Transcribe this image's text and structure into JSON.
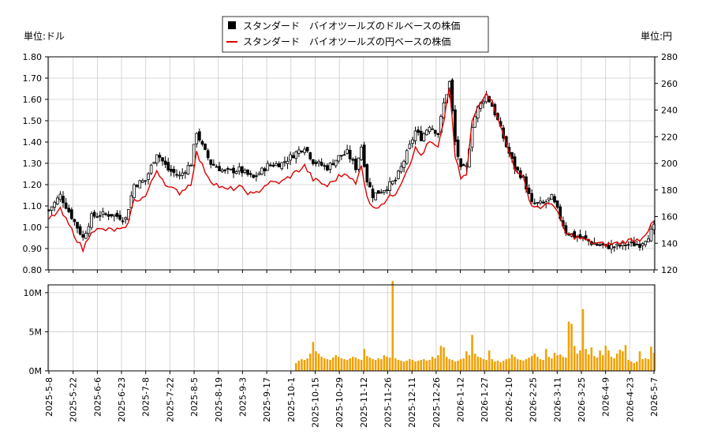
{
  "chart_data": [
    {
      "type": "candlestick+line",
      "legend": {
        "placement": "top-center",
        "entries": [
          {
            "label": "スタンダード　バイオツールズのドルベースの株価",
            "color": "#000000",
            "marker": "square"
          },
          {
            "label": "スタンダード　バイオツールズの円ベースの株価",
            "color": "#dd0000",
            "marker": "line"
          }
        ]
      },
      "ylabel_left": "単位:ドル",
      "ylabel_right": "単位:円",
      "ylim_left": [
        0.8,
        1.8
      ],
      "ylim_right": [
        120,
        280
      ],
      "yticks_left": [
        "1.80",
        "1.70",
        "1.60",
        "1.50",
        "1.40",
        "1.30",
        "1.20",
        "1.10",
        "1.00",
        "0.90",
        "0.80"
      ],
      "yticks_right": [
        "280",
        "260",
        "240",
        "220",
        "200",
        "180",
        "160",
        "140",
        "120"
      ],
      "xticks": [
        "2025-5-8",
        "2025-5-22",
        "2025-6-6",
        "2025-6-23",
        "2025-7-8",
        "2025-7-22",
        "2025-8-5",
        "2025-8-19",
        "2025-9-3",
        "2025-9-17",
        "2025-10-1",
        "2025-10-15",
        "2025-10-29",
        "2025-11-12",
        "2025-11-26",
        "2025-12-11",
        "2025-12-26",
        "2026-1-12",
        "2026-1-27",
        "2026-2-10",
        "2026-2-25",
        "2026-3-11",
        "2026-3-25",
        "2026-4-9",
        "2026-4-23",
        "2026-5-7"
      ],
      "grid": true,
      "usd_close_keypoints": [
        [
          0,
          1.08
        ],
        [
          4,
          1.15
        ],
        [
          8,
          1.05
        ],
        [
          12,
          0.95
        ],
        [
          15,
          1.05
        ],
        [
          18,
          1.06
        ],
        [
          22,
          1.06
        ],
        [
          27,
          1.04
        ],
        [
          30,
          1.2
        ],
        [
          34,
          1.22
        ],
        [
          38,
          1.35
        ],
        [
          42,
          1.27
        ],
        [
          46,
          1.24
        ],
        [
          50,
          1.3
        ],
        [
          52,
          1.45
        ],
        [
          54,
          1.38
        ],
        [
          57,
          1.3
        ],
        [
          62,
          1.26
        ],
        [
          67,
          1.27
        ],
        [
          72,
          1.23
        ],
        [
          77,
          1.29
        ],
        [
          82,
          1.3
        ],
        [
          86,
          1.34
        ],
        [
          90,
          1.38
        ],
        [
          93,
          1.31
        ],
        [
          98,
          1.28
        ],
        [
          102,
          1.33
        ],
        [
          105,
          1.35
        ],
        [
          108,
          1.28
        ],
        [
          110,
          1.38
        ],
        [
          112,
          1.22
        ],
        [
          114,
          1.15
        ],
        [
          118,
          1.18
        ],
        [
          122,
          1.22
        ],
        [
          124,
          1.28
        ],
        [
          127,
          1.38
        ],
        [
          129,
          1.45
        ],
        [
          131,
          1.42
        ],
        [
          134,
          1.48
        ],
        [
          137,
          1.44
        ],
        [
          139,
          1.58
        ],
        [
          141,
          1.68
        ],
        [
          143,
          1.4
        ],
        [
          145,
          1.27
        ],
        [
          147,
          1.28
        ],
        [
          149,
          1.48
        ],
        [
          151,
          1.56
        ],
        [
          154,
          1.62
        ],
        [
          156,
          1.57
        ],
        [
          158,
          1.5
        ],
        [
          161,
          1.38
        ],
        [
          164,
          1.28
        ],
        [
          167,
          1.23
        ],
        [
          170,
          1.11
        ],
        [
          174,
          1.11
        ],
        [
          177,
          1.14
        ],
        [
          179,
          1.08
        ],
        [
          182,
          0.98
        ],
        [
          185,
          0.96
        ],
        [
          188,
          0.95
        ],
        [
          192,
          0.92
        ],
        [
          196,
          0.91
        ],
        [
          200,
          0.91
        ],
        [
          204,
          0.92
        ],
        [
          208,
          0.92
        ],
        [
          211,
          0.96
        ],
        [
          213,
          1.0
        ]
      ],
      "jpy_close_keypoints": [
        [
          0,
          158
        ],
        [
          4,
          165
        ],
        [
          8,
          150
        ],
        [
          12,
          135
        ],
        [
          15,
          150
        ],
        [
          18,
          150
        ],
        [
          22,
          150
        ],
        [
          27,
          150
        ],
        [
          30,
          172
        ],
        [
          34,
          175
        ],
        [
          38,
          195
        ],
        [
          42,
          182
        ],
        [
          46,
          178
        ],
        [
          50,
          185
        ],
        [
          52,
          208
        ],
        [
          54,
          198
        ],
        [
          57,
          187
        ],
        [
          62,
          180
        ],
        [
          67,
          182
        ],
        [
          72,
          176
        ],
        [
          77,
          185
        ],
        [
          82,
          186
        ],
        [
          86,
          192
        ],
        [
          90,
          198
        ],
        [
          93,
          188
        ],
        [
          98,
          183
        ],
        [
          102,
          190
        ],
        [
          105,
          193
        ],
        [
          108,
          184
        ],
        [
          110,
          198
        ],
        [
          112,
          176
        ],
        [
          114,
          166
        ],
        [
          118,
          171
        ],
        [
          122,
          178
        ],
        [
          124,
          186
        ],
        [
          127,
          200
        ],
        [
          129,
          211
        ],
        [
          131,
          206
        ],
        [
          134,
          216
        ],
        [
          137,
          211
        ],
        [
          139,
          232
        ],
        [
          141,
          258
        ],
        [
          143,
          205
        ],
        [
          145,
          189
        ],
        [
          147,
          191
        ],
        [
          149,
          231
        ],
        [
          151,
          243
        ],
        [
          154,
          254
        ],
        [
          156,
          246
        ],
        [
          158,
          236
        ],
        [
          161,
          214
        ],
        [
          164,
          197
        ],
        [
          167,
          188
        ],
        [
          170,
          168
        ],
        [
          174,
          167
        ],
        [
          177,
          171
        ],
        [
          179,
          163
        ],
        [
          182,
          147
        ],
        [
          185,
          145
        ],
        [
          188,
          143
        ],
        [
          192,
          140
        ],
        [
          196,
          139
        ],
        [
          200,
          140
        ],
        [
          204,
          142
        ],
        [
          208,
          143
        ],
        [
          211,
          150
        ],
        [
          213,
          156
        ]
      ],
      "volume_yticks": [
        "10M",
        "5M",
        "0M"
      ],
      "volume_ylim": [
        0,
        11000000
      ],
      "volume_color": "#f0a000",
      "volume_start_index": 87,
      "volume_values": [
        1000000,
        1300000,
        1500000,
        1400000,
        1600000,
        2200000,
        3700000,
        2500000,
        2200000,
        1800000,
        1600000,
        1500000,
        1400000,
        1700000,
        2000000,
        1800000,
        1600000,
        1500000,
        1400000,
        1600000,
        1800000,
        1700000,
        1500000,
        1400000,
        2800000,
        1900000,
        1700000,
        1500000,
        1400000,
        1600000,
        1500000,
        2000000,
        1800000,
        1700000,
        11500000,
        1600000,
        1400000,
        1300000,
        1200000,
        1300000,
        1500000,
        1400000,
        1200000,
        1300000,
        1400000,
        1500000,
        1300000,
        1400000,
        1800000,
        1600000,
        2000000,
        3200000,
        3000000,
        1800000,
        1500000,
        1400000,
        1200000,
        1300000,
        1500000,
        1600000,
        2500000,
        2000000,
        4600000,
        2200000,
        1800000,
        1700000,
        1500000,
        1400000,
        2600000,
        1500000,
        1200000,
        1300000,
        1100000,
        1300000,
        1500000,
        1600000,
        2100000,
        1800000,
        1500000,
        1400000,
        1300000,
        1500000,
        1700000,
        1900000,
        2200000,
        1800000,
        1500000,
        1400000,
        2800000,
        1800000,
        1600000,
        2300000,
        2000000,
        2100000,
        1800000,
        1700000,
        6300000,
        6000000,
        3200000,
        2200000,
        2600000,
        7900000,
        2800000,
        2100000,
        3000000,
        1900000,
        1700000,
        2600000,
        2000000,
        3200000,
        2600000,
        1800000,
        1600000,
        2200000,
        2700000,
        2500000,
        3300000,
        1400000,
        1200000,
        1000000,
        1200000,
        2500000,
        1500000,
        1600000,
        1500000,
        3100000,
        2300000,
        1800000
      ]
    }
  ]
}
